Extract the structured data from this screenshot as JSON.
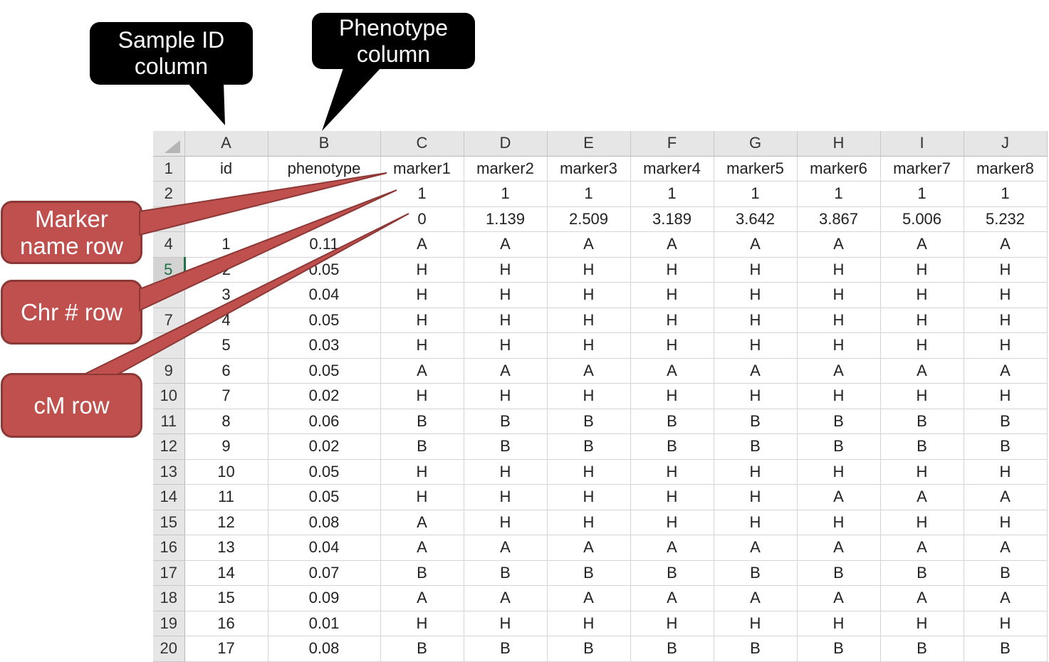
{
  "columns": [
    "A",
    "B",
    "C",
    "D",
    "E",
    "F",
    "G",
    "H",
    "I",
    "J"
  ],
  "rows": [
    {
      "num": "1",
      "cells": [
        "id",
        "phenotype",
        "marker1",
        "marker2",
        "marker3",
        "marker4",
        "marker5",
        "marker6",
        "marker7",
        "marker8"
      ]
    },
    {
      "num": "2",
      "cells": [
        "",
        "",
        "1",
        "1",
        "1",
        "1",
        "1",
        "1",
        "1",
        "1"
      ]
    },
    {
      "num": "",
      "cells": [
        "",
        "",
        "0",
        "1.139",
        "2.509",
        "3.189",
        "3.642",
        "3.867",
        "5.006",
        "5.232"
      ]
    },
    {
      "num": "4",
      "cells": [
        "1",
        "0.11",
        "A",
        "A",
        "A",
        "A",
        "A",
        "A",
        "A",
        "A"
      ]
    },
    {
      "num": "5",
      "active": true,
      "cells": [
        "2",
        "0.05",
        "H",
        "H",
        "H",
        "H",
        "H",
        "H",
        "H",
        "H"
      ]
    },
    {
      "num": "",
      "cells": [
        "3",
        "0.04",
        "H",
        "H",
        "H",
        "H",
        "H",
        "H",
        "H",
        "H"
      ]
    },
    {
      "num": "7",
      "cells": [
        "4",
        "0.05",
        "H",
        "H",
        "H",
        "H",
        "H",
        "H",
        "H",
        "H"
      ]
    },
    {
      "num": "",
      "cells": [
        "5",
        "0.03",
        "H",
        "H",
        "H",
        "H",
        "H",
        "H",
        "H",
        "H"
      ]
    },
    {
      "num": "9",
      "cells": [
        "6",
        "0.05",
        "A",
        "A",
        "A",
        "A",
        "A",
        "A",
        "A",
        "A"
      ]
    },
    {
      "num": "10",
      "cells": [
        "7",
        "0.02",
        "H",
        "H",
        "H",
        "H",
        "H",
        "H",
        "H",
        "H"
      ]
    },
    {
      "num": "11",
      "cells": [
        "8",
        "0.06",
        "B",
        "B",
        "B",
        "B",
        "B",
        "B",
        "B",
        "B"
      ]
    },
    {
      "num": "12",
      "cells": [
        "9",
        "0.02",
        "B",
        "B",
        "B",
        "B",
        "B",
        "B",
        "B",
        "B"
      ]
    },
    {
      "num": "13",
      "cells": [
        "10",
        "0.05",
        "H",
        "H",
        "H",
        "H",
        "H",
        "H",
        "H",
        "H"
      ]
    },
    {
      "num": "14",
      "cells": [
        "11",
        "0.05",
        "H",
        "H",
        "H",
        "H",
        "H",
        "A",
        "A",
        "A"
      ]
    },
    {
      "num": "15",
      "cells": [
        "12",
        "0.08",
        "A",
        "H",
        "H",
        "H",
        "H",
        "H",
        "H",
        "H"
      ]
    },
    {
      "num": "16",
      "cells": [
        "13",
        "0.04",
        "A",
        "A",
        "A",
        "A",
        "A",
        "A",
        "A",
        "A"
      ]
    },
    {
      "num": "17",
      "cells": [
        "14",
        "0.07",
        "B",
        "B",
        "B",
        "B",
        "B",
        "B",
        "B",
        "B"
      ]
    },
    {
      "num": "18",
      "cells": [
        "15",
        "0.09",
        "A",
        "A",
        "A",
        "A",
        "A",
        "A",
        "A",
        "A"
      ]
    },
    {
      "num": "19",
      "cells": [
        "16",
        "0.01",
        "H",
        "H",
        "H",
        "H",
        "H",
        "H",
        "H",
        "H"
      ]
    },
    {
      "num": "20",
      "cells": [
        "17",
        "0.08",
        "B",
        "B",
        "B",
        "B",
        "B",
        "B",
        "B",
        "B"
      ]
    }
  ],
  "callouts": {
    "sample_id": "Sample ID\ncolumn",
    "phenotype": "Phenotype\ncolumn",
    "marker_name": "Marker\nname row",
    "chr": "Chr # row",
    "cm": "cM row"
  },
  "colors": {
    "callout_red": "#c0504d",
    "callout_black": "#000000",
    "header_gray": "#e6e6e6"
  }
}
